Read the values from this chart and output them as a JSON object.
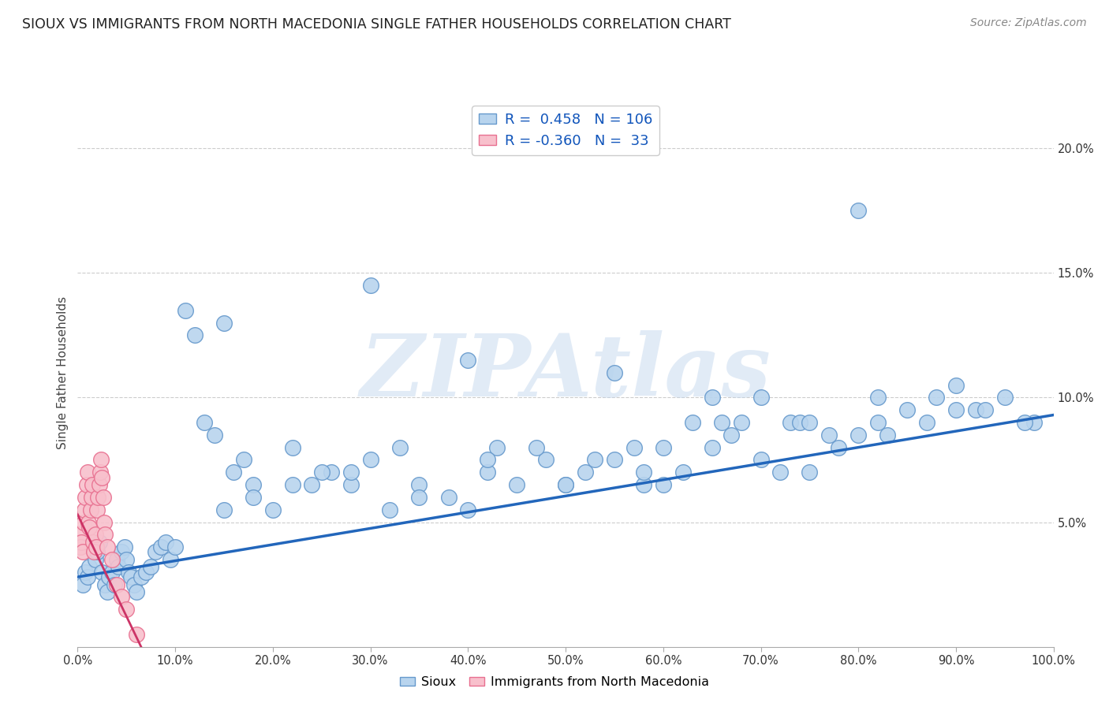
{
  "title": "SIOUX VS IMMIGRANTS FROM NORTH MACEDONIA SINGLE FATHER HOUSEHOLDS CORRELATION CHART",
  "source": "Source: ZipAtlas.com",
  "ylabel": "Single Father Households",
  "xlim": [
    0.0,
    1.0
  ],
  "ylim": [
    0.0,
    0.22
  ],
  "xticks": [
    0.0,
    0.1,
    0.2,
    0.3,
    0.4,
    0.5,
    0.6,
    0.7,
    0.8,
    0.9,
    1.0
  ],
  "xticklabels": [
    "0.0%",
    "10.0%",
    "20.0%",
    "30.0%",
    "40.0%",
    "50.0%",
    "60.0%",
    "70.0%",
    "80.0%",
    "90.0%",
    "100.0%"
  ],
  "yticks": [
    0.05,
    0.1,
    0.15,
    0.2
  ],
  "yticklabels": [
    "5.0%",
    "10.0%",
    "15.0%",
    "20.0%"
  ],
  "sioux_color": "#b8d4ee",
  "sioux_edge_color": "#6699cc",
  "immac_color": "#f8c0cc",
  "immac_edge_color": "#e87090",
  "trendline_sioux_color": "#2266bb",
  "trendline_immac_color": "#cc3366",
  "legend_R1": "0.458",
  "legend_N1": "106",
  "legend_R2": "-0.360",
  "legend_N2": "33",
  "watermark": "ZIPAtlas",
  "background_color": "#ffffff",
  "grid_color": "#cccccc",
  "title_color": "#222222",
  "axis_label_color": "#444444",
  "tick_color": "#333333",
  "sioux_x": [
    0.005,
    0.008,
    0.01,
    0.012,
    0.015,
    0.018,
    0.02,
    0.022,
    0.025,
    0.028,
    0.03,
    0.032,
    0.035,
    0.038,
    0.04,
    0.042,
    0.045,
    0.048,
    0.05,
    0.052,
    0.055,
    0.058,
    0.06,
    0.065,
    0.07,
    0.075,
    0.08,
    0.085,
    0.09,
    0.095,
    0.1,
    0.11,
    0.12,
    0.13,
    0.14,
    0.15,
    0.16,
    0.17,
    0.18,
    0.2,
    0.22,
    0.24,
    0.26,
    0.28,
    0.3,
    0.32,
    0.35,
    0.38,
    0.4,
    0.42,
    0.45,
    0.48,
    0.5,
    0.52,
    0.55,
    0.58,
    0.6,
    0.62,
    0.65,
    0.68,
    0.7,
    0.72,
    0.75,
    0.78,
    0.8,
    0.82,
    0.85,
    0.88,
    0.9,
    0.92,
    0.95,
    0.98,
    0.25,
    0.33,
    0.43,
    0.53,
    0.63,
    0.73,
    0.83,
    0.93,
    0.15,
    0.18,
    0.22,
    0.28,
    0.35,
    0.42,
    0.5,
    0.58,
    0.66,
    0.74,
    0.82,
    0.9,
    0.47,
    0.57,
    0.67,
    0.77,
    0.87,
    0.97,
    0.3,
    0.4,
    0.6,
    0.7,
    0.8,
    0.55,
    0.65,
    0.75
  ],
  "sioux_y": [
    0.025,
    0.03,
    0.028,
    0.032,
    0.04,
    0.035,
    0.038,
    0.042,
    0.03,
    0.025,
    0.022,
    0.028,
    0.03,
    0.025,
    0.035,
    0.032,
    0.038,
    0.04,
    0.035,
    0.03,
    0.028,
    0.025,
    0.022,
    0.028,
    0.03,
    0.032,
    0.038,
    0.04,
    0.042,
    0.035,
    0.04,
    0.135,
    0.125,
    0.09,
    0.085,
    0.13,
    0.07,
    0.075,
    0.065,
    0.055,
    0.08,
    0.065,
    0.07,
    0.065,
    0.075,
    0.055,
    0.065,
    0.06,
    0.055,
    0.07,
    0.065,
    0.075,
    0.065,
    0.07,
    0.075,
    0.065,
    0.08,
    0.07,
    0.08,
    0.09,
    0.075,
    0.07,
    0.07,
    0.08,
    0.085,
    0.09,
    0.095,
    0.1,
    0.105,
    0.095,
    0.1,
    0.09,
    0.07,
    0.08,
    0.08,
    0.075,
    0.09,
    0.09,
    0.085,
    0.095,
    0.055,
    0.06,
    0.065,
    0.07,
    0.06,
    0.075,
    0.065,
    0.07,
    0.09,
    0.09,
    0.1,
    0.095,
    0.08,
    0.08,
    0.085,
    0.085,
    0.09,
    0.09,
    0.145,
    0.115,
    0.065,
    0.1,
    0.175,
    0.11,
    0.1,
    0.09
  ],
  "immac_x": [
    0.002,
    0.003,
    0.004,
    0.005,
    0.006,
    0.007,
    0.008,
    0.009,
    0.01,
    0.011,
    0.012,
    0.013,
    0.014,
    0.015,
    0.016,
    0.017,
    0.018,
    0.019,
    0.02,
    0.021,
    0.022,
    0.023,
    0.024,
    0.025,
    0.026,
    0.027,
    0.028,
    0.03,
    0.035,
    0.04,
    0.045,
    0.05,
    0.06
  ],
  "immac_y": [
    0.045,
    0.04,
    0.042,
    0.038,
    0.05,
    0.055,
    0.06,
    0.065,
    0.07,
    0.05,
    0.048,
    0.055,
    0.06,
    0.065,
    0.042,
    0.038,
    0.045,
    0.04,
    0.055,
    0.06,
    0.065,
    0.07,
    0.075,
    0.068,
    0.06,
    0.05,
    0.045,
    0.04,
    0.035,
    0.025,
    0.02,
    0.015,
    0.005
  ],
  "sioux_trendline_x": [
    0.0,
    1.0
  ],
  "sioux_trendline_y": [
    0.028,
    0.093
  ],
  "immac_trendline_x": [
    0.0,
    0.065
  ],
  "immac_trendline_y": [
    0.053,
    0.0
  ]
}
